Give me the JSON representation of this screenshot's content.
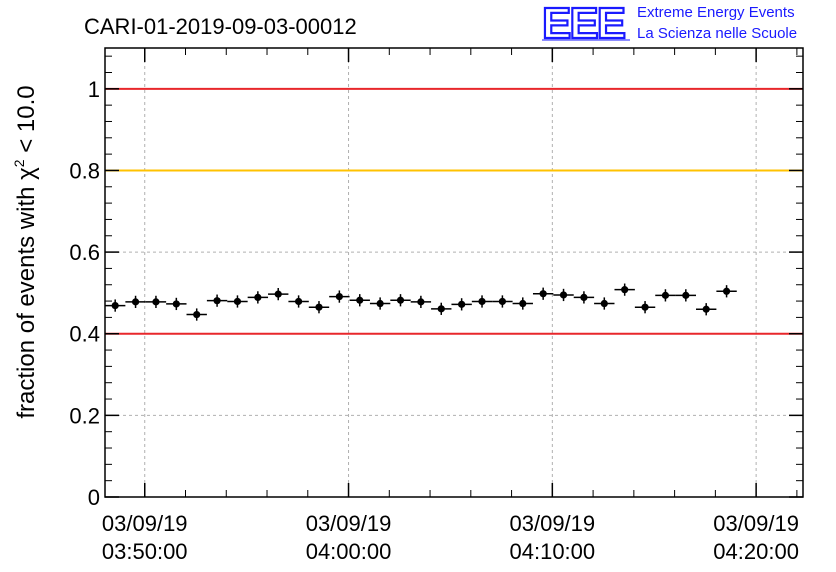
{
  "chart_data": {
    "type": "scatter",
    "title": "CARI-01-2019-09-03-00012",
    "ylabel": {
      "prefix": "fraction of events with ",
      "chi": "χ",
      "exp": "2",
      "suffix": " < 10.0"
    },
    "ylim": [
      0,
      1.1
    ],
    "y_ticks": [
      0,
      0.2,
      0.4,
      0.6,
      0.8,
      1
    ],
    "y_tick_labels": [
      "0",
      "0.2",
      "0.4",
      "0.6",
      "0.8",
      "1"
    ],
    "x_range_minutes": [
      -1.95,
      32.3
    ],
    "x_ticks_minutes": [
      0,
      10,
      20,
      30
    ],
    "x_tick_labels": [
      {
        "date": "03/09/19",
        "time": "03:50:00"
      },
      {
        "date": "03/09/19",
        "time": "04:00:00"
      },
      {
        "date": "03/09/19",
        "time": "04:10:00"
      },
      {
        "date": "03/09/19",
        "time": "04:20:00"
      }
    ],
    "grid": true,
    "reference_lines": [
      {
        "name": "upper-limit",
        "value": 1.0,
        "color": "#e8272b"
      },
      {
        "name": "warning-limit",
        "value": 0.8,
        "color": "#ffc200"
      },
      {
        "name": "lower-limit",
        "value": 0.4,
        "color": "#e8272b"
      }
    ],
    "series": [
      {
        "name": "fraction",
        "bin_width_minutes": 1,
        "bin_start_minutes": -1.95,
        "values": [
          0.469,
          0.478,
          0.478,
          0.473,
          0.447,
          0.481,
          0.479,
          0.489,
          0.497,
          0.479,
          0.465,
          0.491,
          0.482,
          0.474,
          0.482,
          0.478,
          0.461,
          0.472,
          0.479,
          0.479,
          0.474,
          0.498,
          0.495,
          0.489,
          0.474,
          0.508,
          0.465,
          0.494,
          0.494,
          0.46,
          0.504
        ],
        "errors": [
          0.015,
          0.015,
          0.015,
          0.015,
          0.015,
          0.015,
          0.015,
          0.015,
          0.015,
          0.015,
          0.015,
          0.015,
          0.015,
          0.015,
          0.015,
          0.015,
          0.015,
          0.015,
          0.015,
          0.015,
          0.015,
          0.015,
          0.015,
          0.015,
          0.015,
          0.015,
          0.015,
          0.015,
          0.015,
          0.015,
          0.015
        ]
      }
    ]
  },
  "logo": {
    "letters": "EEE",
    "line1": "Extreme Energy Events",
    "line2": "La Scienza nelle Scuole",
    "color": "#1a1aff"
  },
  "colors": {
    "axis": "#000000",
    "grid": "#b0b0b0",
    "marker": "#000000"
  }
}
